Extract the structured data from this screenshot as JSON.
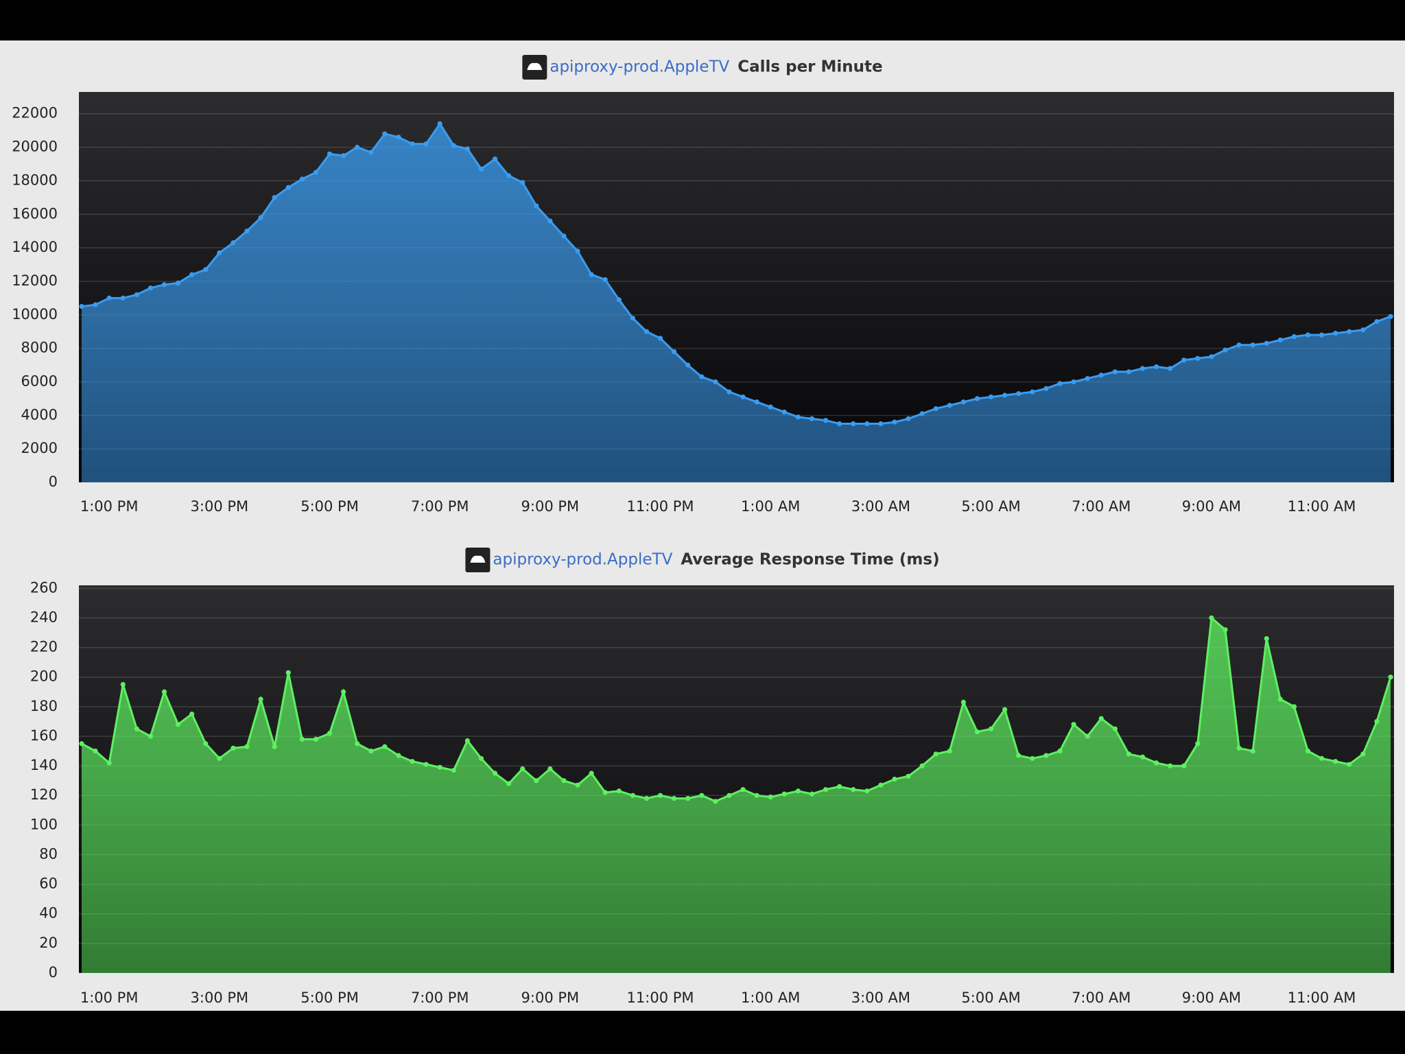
{
  "chart_data": [
    {
      "type": "area",
      "title_source": "apiproxy-prod.AppleTV",
      "title": "Calls per Minute",
      "categories": [
        null,
        null,
        "1:00 PM",
        null,
        null,
        null,
        null,
        null,
        null,
        null,
        "3:00 PM",
        null,
        null,
        null,
        null,
        null,
        null,
        null,
        "5:00 PM",
        null,
        null,
        null,
        null,
        null,
        null,
        null,
        "7:00 PM",
        null,
        null,
        null,
        null,
        null,
        null,
        null,
        "9:00 PM",
        null,
        null,
        null,
        null,
        null,
        null,
        null,
        "11:00 PM",
        null,
        null,
        null,
        null,
        null,
        null,
        null,
        "1:00 AM",
        null,
        null,
        null,
        null,
        null,
        null,
        null,
        "3:00 AM",
        null,
        null,
        null,
        null,
        null,
        null,
        null,
        "5:00 AM",
        null,
        null,
        null,
        null,
        null,
        null,
        null,
        "7:00 AM",
        null,
        null,
        null,
        null,
        null,
        null,
        null,
        "9:00 AM",
        null,
        null,
        null,
        null,
        null,
        null,
        null,
        "11:00 AM",
        null,
        null,
        null,
        null,
        null
      ],
      "values": [
        10500,
        10600,
        11000,
        11000,
        11200,
        11600,
        11800,
        11900,
        12400,
        12700,
        13700,
        14300,
        15000,
        15800,
        17000,
        17600,
        18100,
        18500,
        19600,
        19500,
        20000,
        19700,
        20800,
        20600,
        20200,
        20200,
        21400,
        20100,
        19900,
        18700,
        19300,
        18300,
        17900,
        16500,
        15600,
        14700,
        13800,
        12400,
        12100,
        10900,
        9800,
        9000,
        8600,
        7800,
        7000,
        6300,
        6000,
        5400,
        5100,
        4800,
        4500,
        4200,
        3900,
        3800,
        3700,
        3500,
        3500,
        3500,
        3500,
        3600,
        3800,
        4100,
        4400,
        4600,
        4800,
        5000,
        5100,
        5200,
        5300,
        5400,
        5600,
        5900,
        6000,
        6200,
        6400,
        6600,
        6600,
        6800,
        6900,
        6800,
        7300,
        7400,
        7500,
        7900,
        8200,
        8200,
        8300,
        8500,
        8700,
        8800,
        8800,
        8900,
        9000,
        9100,
        9600,
        9900
      ],
      "color": "#3a9cf0",
      "ylim": [
        0,
        23300
      ],
      "yticks": [
        0,
        2000,
        4000,
        6000,
        8000,
        10000,
        12000,
        14000,
        16000,
        18000,
        20000,
        22000
      ],
      "grid": true
    },
    {
      "type": "area",
      "title_source": "apiproxy-prod.AppleTV",
      "title": "Average Response Time (ms)",
      "categories": [
        null,
        null,
        "1:00 PM",
        null,
        null,
        null,
        null,
        null,
        null,
        null,
        "3:00 PM",
        null,
        null,
        null,
        null,
        null,
        null,
        null,
        "5:00 PM",
        null,
        null,
        null,
        null,
        null,
        null,
        null,
        "7:00 PM",
        null,
        null,
        null,
        null,
        null,
        null,
        null,
        "9:00 PM",
        null,
        null,
        null,
        null,
        null,
        null,
        null,
        "11:00 PM",
        null,
        null,
        null,
        null,
        null,
        null,
        null,
        "1:00 AM",
        null,
        null,
        null,
        null,
        null,
        null,
        null,
        "3:00 AM",
        null,
        null,
        null,
        null,
        null,
        null,
        null,
        "5:00 AM",
        null,
        null,
        null,
        null,
        null,
        null,
        null,
        "7:00 AM",
        null,
        null,
        null,
        null,
        null,
        null,
        null,
        "9:00 AM",
        null,
        null,
        null,
        null,
        null,
        null,
        null,
        "11:00 AM",
        null,
        null,
        null,
        null,
        null
      ],
      "values": [
        155,
        150,
        142,
        195,
        165,
        160,
        190,
        168,
        175,
        155,
        145,
        152,
        153,
        185,
        153,
        203,
        158,
        158,
        162,
        190,
        155,
        150,
        153,
        147,
        143,
        141,
        139,
        137,
        157,
        145,
        135,
        128,
        138,
        130,
        138,
        130,
        127,
        135,
        122,
        123,
        120,
        118,
        120,
        118,
        118,
        120,
        116,
        120,
        124,
        120,
        119,
        121,
        123,
        121,
        124,
        126,
        124,
        123,
        127,
        131,
        133,
        140,
        148,
        150,
        183,
        163,
        165,
        178,
        147,
        145,
        147,
        150,
        168,
        160,
        172,
        165,
        148,
        146,
        142,
        140,
        140,
        155,
        240,
        232,
        152,
        150,
        226,
        185,
        180,
        150,
        145,
        143,
        141,
        148,
        170,
        200
      ],
      "color": "#5ef060",
      "ylim": [
        0,
        262
      ],
      "yticks": [
        0,
        20,
        40,
        60,
        80,
        100,
        120,
        140,
        160,
        180,
        200,
        220,
        240,
        260
      ],
      "grid": true
    }
  ]
}
